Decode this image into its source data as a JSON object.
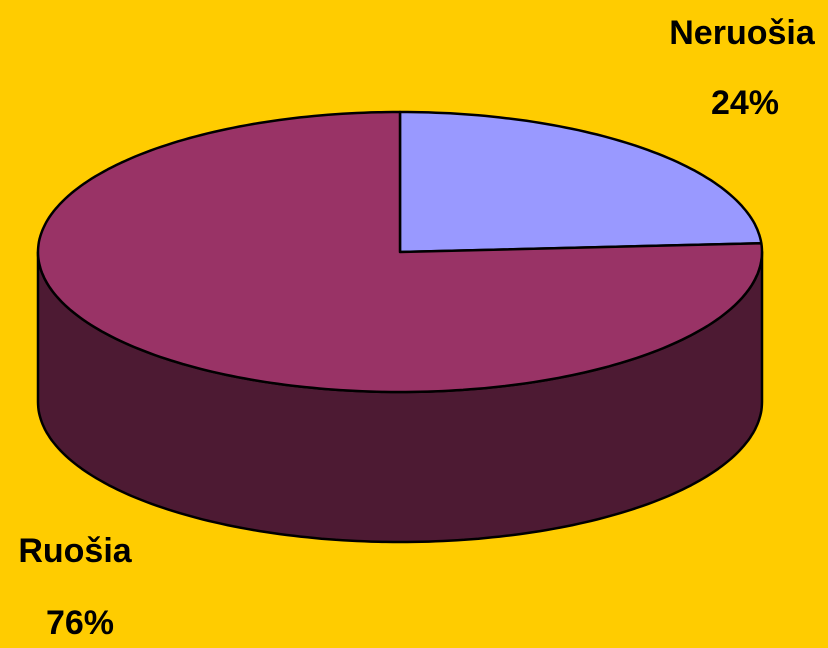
{
  "chart_data": {
    "type": "pie3d",
    "categories": [
      "Neruošia",
      "Ruošia"
    ],
    "values": [
      24,
      76
    ],
    "value_labels": [
      "24%",
      "76%"
    ],
    "colors": [
      "#9999ff",
      "#993366"
    ],
    "background": "#ffcc00"
  }
}
